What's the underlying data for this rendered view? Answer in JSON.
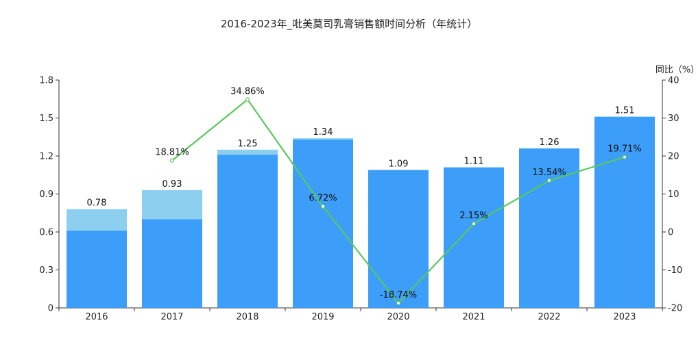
{
  "chart_data": {
    "type": "bar",
    "title": "2016-2023年_吡美莫司乳膏销售额时间分析（年统计）",
    "categories": [
      "2016",
      "2017",
      "2018",
      "2019",
      "2020",
      "2021",
      "2022",
      "2023"
    ],
    "series": [
      {
        "kind": "bar",
        "total_values": [
          0.78,
          0.93,
          1.25,
          1.34,
          1.09,
          1.11,
          1.26,
          1.51
        ],
        "inner_values": [
          0.61,
          0.7,
          1.21,
          1.33,
          1.09,
          1.11,
          1.26,
          1.51
        ],
        "total_labels": [
          "0.78",
          "0.93",
          "1.25",
          "1.34",
          "1.09",
          "1.11",
          "1.26",
          "1.51"
        ],
        "color_total": "#8dcfee",
        "color_inner": "#3c9ef8"
      },
      {
        "kind": "line",
        "axis": "right",
        "values": [
          null,
          18.81,
          34.86,
          6.72,
          -18.74,
          2.15,
          13.54,
          19.71
        ],
        "labels": [
          "",
          "18.81%",
          "34.86%",
          "6.72%",
          "-18.74%",
          "2.15%",
          "13.54%",
          "19.71%"
        ],
        "color": "#5ac85e"
      }
    ],
    "y_left": {
      "ylim": [
        0,
        1.8
      ],
      "ticks": [
        "0",
        "0.3",
        "0.6",
        "0.9",
        "1.2",
        "1.5",
        "1.8"
      ],
      "tick_values": [
        0,
        0.3,
        0.6,
        0.9,
        1.2,
        1.5,
        1.8
      ]
    },
    "y_right": {
      "label": "同比（%）",
      "ylim": [
        -20,
        40
      ],
      "ticks": [
        "-20",
        "-10",
        "0",
        "10",
        "20",
        "30",
        "40"
      ],
      "tick_values": [
        -20,
        -10,
        0,
        10,
        20,
        30,
        40
      ]
    },
    "grid": false,
    "legend": "none"
  }
}
